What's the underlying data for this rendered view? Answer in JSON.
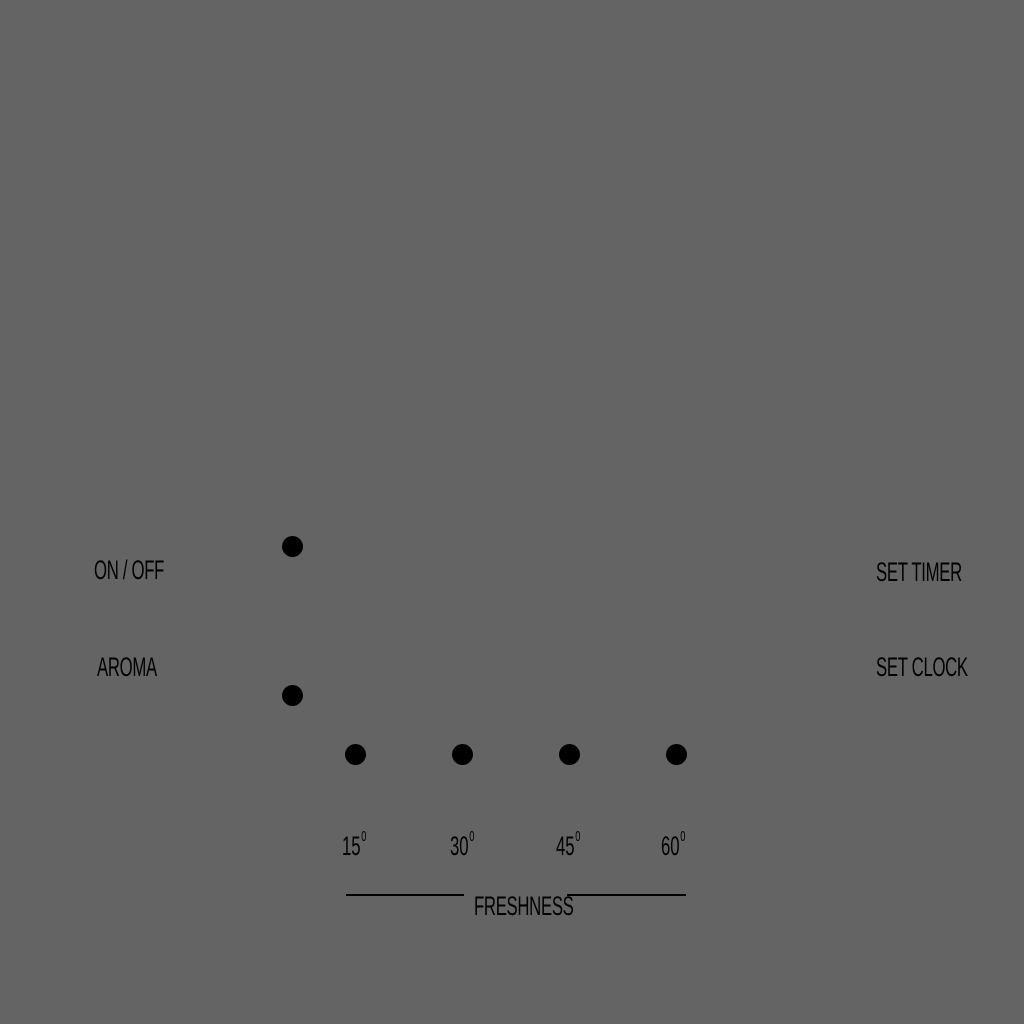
{
  "colors": {
    "background": "#646464",
    "foreground": "#000000"
  },
  "controls": {
    "on_off_label": "ON / OFF",
    "aroma_label": "AROMA",
    "set_timer_label": "SET TIMER",
    "set_clock_label": "SET CLOCK"
  },
  "freshness": {
    "label": "FRESHNESS",
    "ticks": [
      {
        "value": "15",
        "unit": "0"
      },
      {
        "value": "30",
        "unit": "0"
      },
      {
        "value": "45",
        "unit": "0"
      },
      {
        "value": "60",
        "unit": "0"
      }
    ]
  }
}
